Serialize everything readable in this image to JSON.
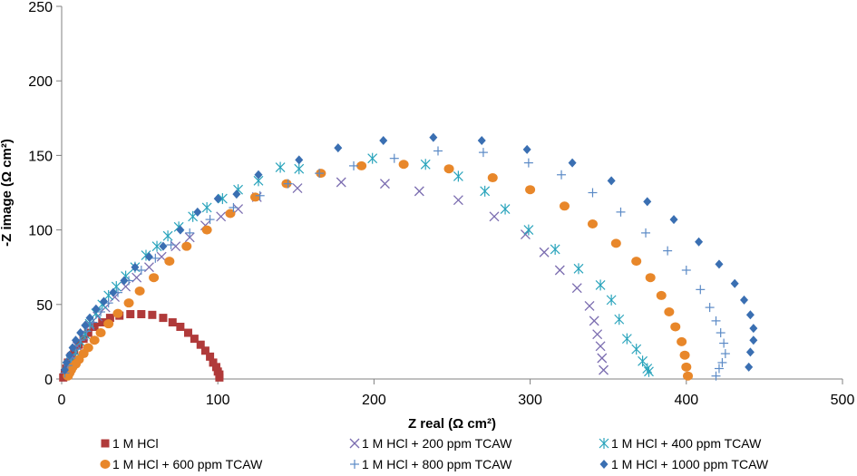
{
  "chart_data": {
    "type": "scatter",
    "title": "",
    "xlabel": "Z real (Ω cm²)",
    "ylabel": "-Z image (Ω cm²)",
    "xlim": [
      0,
      500
    ],
    "ylim": [
      0,
      250
    ],
    "xticks": [
      0,
      100,
      200,
      300,
      400,
      500
    ],
    "yticks": [
      0,
      50,
      100,
      150,
      200,
      250
    ],
    "grid": false,
    "legend_position": "bottom",
    "series": [
      {
        "name": "1 M HCl",
        "marker": "square",
        "color": "#b03a3a",
        "x": [
          1,
          2,
          3,
          4,
          6,
          8,
          11,
          14,
          17,
          21,
          26,
          31,
          37,
          44,
          51,
          58,
          65,
          71,
          76,
          81,
          85,
          89,
          92,
          95,
          97,
          99,
          100,
          101,
          101
        ],
        "y": [
          1,
          4,
          7,
          11,
          15,
          19,
          23,
          27,
          31,
          35,
          38,
          41,
          42.5,
          43.5,
          43.5,
          43,
          41,
          38,
          35,
          31,
          27,
          23,
          19,
          15,
          11,
          8,
          5,
          3,
          1
        ]
      },
      {
        "name": "1 M HCl + 200 ppm TCAW",
        "marker": "x",
        "color": "#7b6db0",
        "x": [
          4,
          7,
          10,
          14,
          18,
          23,
          28,
          34,
          41,
          48,
          56,
          64,
          73,
          82,
          92,
          102,
          113,
          125,
          151,
          179,
          207,
          229,
          254,
          277,
          297,
          309,
          319,
          330,
          338,
          341,
          343,
          345,
          346,
          347
        ],
        "y": [
          8,
          15,
          22,
          29,
          36,
          42,
          48,
          55,
          62,
          68,
          75,
          82,
          89,
          95,
          103,
          109,
          114,
          122,
          128,
          132,
          131,
          126,
          120,
          109,
          97,
          85,
          73,
          61,
          49,
          39,
          30,
          22,
          14,
          6
        ]
      },
      {
        "name": "1 M HCl + 400 ppm TCAW",
        "marker": "asterisk",
        "color": "#2aa4bc",
        "x": [
          6,
          9,
          12,
          15,
          18,
          22,
          26,
          30,
          35,
          41,
          47,
          54,
          61,
          68,
          75,
          84,
          93,
          103,
          113,
          126,
          140,
          152,
          199,
          233,
          254,
          271,
          284,
          299,
          316,
          331,
          345,
          352,
          357,
          362,
          368,
          372,
          375,
          376
        ],
        "y": [
          12,
          18,
          25,
          30,
          37,
          44,
          50,
          56,
          62,
          69,
          75,
          83,
          89,
          96,
          102,
          109,
          115,
          121,
          127,
          133,
          142,
          141,
          148,
          144,
          136,
          126,
          114,
          100,
          87,
          74,
          63,
          53,
          40,
          27,
          20,
          12,
          7,
          5
        ]
      },
      {
        "name": "1 M HCl + 600 ppm TCAW",
        "marker": "circle",
        "color": "#e8872a",
        "x": [
          4,
          5,
          6,
          7,
          9,
          11,
          14,
          17,
          21,
          25,
          30,
          36,
          43,
          50,
          59,
          69,
          80,
          93,
          108,
          124,
          144,
          166,
          192,
          219,
          248,
          276,
          300,
          322,
          340,
          355,
          368,
          377,
          384,
          389,
          393,
          397,
          399,
          400,
          401
        ],
        "y": [
          2,
          4,
          6,
          8,
          10,
          13,
          17,
          21,
          26,
          31,
          37,
          44,
          51,
          59,
          68,
          79,
          89,
          100,
          111,
          122,
          131,
          138,
          143,
          144,
          141,
          135,
          127,
          116,
          104,
          91,
          79,
          68,
          56,
          45,
          35,
          25,
          16,
          8,
          2
        ]
      },
      {
        "name": "1 M HCl + 800 ppm TCAW",
        "marker": "plus",
        "color": "#5b8ac6",
        "x": [
          2,
          4,
          6,
          9,
          12,
          16,
          20,
          25,
          30,
          36,
          43,
          51,
          60,
          70,
          82,
          95,
          110,
          127,
          145,
          165,
          187,
          213,
          241,
          270,
          299,
          320,
          340,
          358,
          374,
          388,
          400,
          409,
          415,
          419,
          422,
          424,
          425,
          423,
          421,
          419
        ],
        "y": [
          4,
          9,
          14,
          20,
          26,
          32,
          38,
          45,
          51,
          58,
          66,
          73,
          81,
          90,
          98,
          107,
          115,
          123,
          131,
          138,
          143,
          148,
          153,
          152,
          145,
          137,
          125,
          112,
          98,
          86,
          73,
          60,
          48,
          39,
          31,
          24,
          17,
          11,
          7,
          2
        ]
      },
      {
        "name": "1 M HCl + 1000 ppm TCAW",
        "marker": "diamond",
        "color": "#3a6fb2",
        "x": [
          2,
          3,
          5,
          7,
          9,
          12,
          15,
          18,
          22,
          27,
          33,
          40,
          47,
          56,
          65,
          76,
          87,
          100,
          112,
          126,
          152,
          177,
          206,
          238,
          269,
          298,
          327,
          352,
          375,
          392,
          408,
          421,
          431,
          437,
          441,
          443,
          443,
          441,
          440
        ],
        "y": [
          6,
          11,
          16,
          21,
          26,
          31,
          36,
          41,
          47,
          52,
          58,
          66,
          75,
          82,
          89,
          100,
          112,
          121,
          124,
          137,
          147,
          155,
          160,
          162,
          160,
          154,
          145,
          133,
          119,
          107,
          92,
          77,
          64,
          53,
          43,
          34,
          26,
          18,
          8
        ]
      }
    ]
  }
}
